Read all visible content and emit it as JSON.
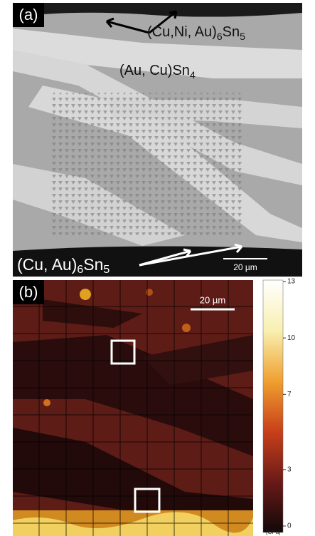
{
  "panel_a": {
    "label": "(a)",
    "phase_top": [
      "(Cu,Ni, Au)",
      "6",
      "Sn",
      "5"
    ],
    "phase_mid": [
      "(Au, Cu)Sn",
      "4"
    ],
    "phase_bottom": [
      "(Cu, Au)",
      "6",
      "Sn",
      "5"
    ],
    "scale_bar": "20 µm"
  },
  "panel_b": {
    "label": "(b)",
    "scale_bar": "20 µm",
    "colorbar": {
      "lim": [
        0,
        13
      ],
      "ticks": [
        0,
        3,
        7,
        10,
        13
      ],
      "unit": "[GPa]"
    }
  }
}
